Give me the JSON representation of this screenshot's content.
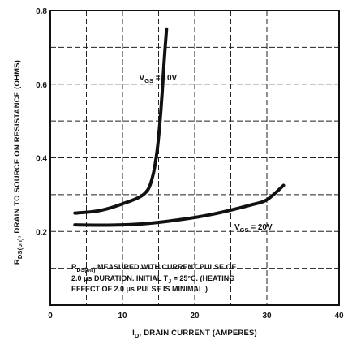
{
  "chart_data": {
    "type": "line",
    "title": "",
    "xlabel": "I_D, DRAIN CURRENT (AMPERES)",
    "xlabel_main": "I",
    "xlabel_sub": "D",
    "xlabel_rest": ", DRAIN CURRENT (AMPERES)",
    "ylabel": "R_DS(on), DRAIN TO SOURCE ON RESISTANCE (OHMS)",
    "ylabel_main": "R",
    "ylabel_sub": "DS(on)",
    "ylabel_rest": ", DRAIN TO SOURCE ON RESISTANCE (OHMS)",
    "xlim": [
      0,
      40
    ],
    "ylim": [
      0,
      0.8
    ],
    "x_ticks": [
      0,
      10,
      20,
      30,
      40
    ],
    "x_tick_labels": [
      "0",
      "10",
      "20",
      "30",
      "40"
    ],
    "y_ticks": [
      0.2,
      0.4,
      0.6,
      0.8
    ],
    "y_tick_labels": [
      "0.2",
      "0.4",
      "0.6",
      "0.8"
    ],
    "grid": true,
    "series": [
      {
        "name": "V_GS = 10V",
        "label_main": "V",
        "label_sub": "GS",
        "label_rest": " = 10V",
        "label_at": [
          12.3,
          0.61
        ],
        "points": [
          [
            3.4,
            0.25
          ],
          [
            6,
            0.254
          ],
          [
            8,
            0.262
          ],
          [
            10,
            0.275
          ],
          [
            12,
            0.29
          ],
          [
            13,
            0.302
          ],
          [
            13.7,
            0.32
          ],
          [
            14.3,
            0.36
          ],
          [
            14.8,
            0.42
          ],
          [
            15.2,
            0.5
          ],
          [
            15.5,
            0.58
          ],
          [
            15.8,
            0.67
          ],
          [
            16.1,
            0.75
          ]
        ]
      },
      {
        "name": "V_GS = 20V",
        "label_main": "V",
        "label_sub": "GS",
        "label_rest": " = 20V",
        "label_at": [
          25.5,
          0.205
        ],
        "points": [
          [
            3.4,
            0.218
          ],
          [
            7,
            0.217
          ],
          [
            10,
            0.218
          ],
          [
            13,
            0.221
          ],
          [
            16,
            0.227
          ],
          [
            19,
            0.235
          ],
          [
            22,
            0.245
          ],
          [
            25,
            0.258
          ],
          [
            28,
            0.273
          ],
          [
            30,
            0.286
          ],
          [
            32.3,
            0.325
          ]
        ]
      }
    ],
    "annotations": [
      {
        "main": "R",
        "sub": "DS(on)",
        "rest": " MEASURED WITH CURRENT PULSE OF"
      },
      {
        "text": "2.0 μs DURATION. INITIAL T",
        "sub": "J",
        "rest": " = 25°C. (HEATING"
      },
      {
        "text": "EFFECT OF 2.0 μs PULSE IS MINIMAL.)"
      }
    ],
    "colors": {
      "ink": "#111111",
      "grid": "#222222",
      "background": "#ffffff"
    }
  }
}
